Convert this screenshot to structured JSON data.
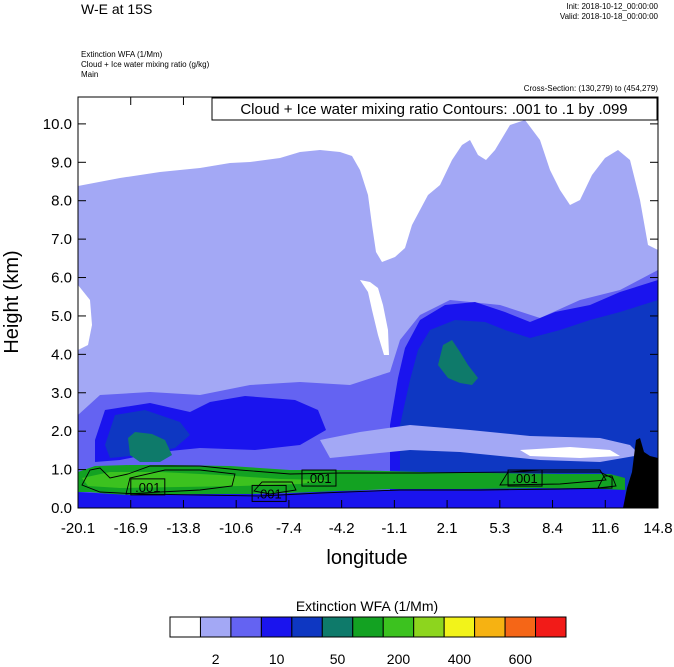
{
  "header": {
    "title": "W-E at 15S",
    "init": "Init: 2018-10-12_00:00:00",
    "valid": "Valid: 2018-10-18_00:00:00",
    "field_line1": "Extinction WFA   (1/Mm)",
    "field_line2": "Cloud + Ice water mixing ratio   (g/kg)",
    "field_line3": "Main",
    "cross_section": "Cross-Section: (130,279) to (454,279)",
    "contour_info": "Cloud + Ice water mixing ratio Contours: .001 to .1 by .099"
  },
  "chart_data": {
    "type": "heatmap",
    "xlabel": "longitude",
    "ylabel": "Height (km)",
    "xlim": [
      -20.1,
      14.8
    ],
    "ylim": [
      0.0,
      10.7
    ],
    "x_ticks": [
      "-20.1",
      "-16.9",
      "-13.8",
      "-10.6",
      "-7.4",
      "-4.2",
      "-1.1",
      "2.1",
      "5.3",
      "8.4",
      "11.6",
      "14.8"
    ],
    "y_ticks": [
      "0.0",
      "1.0",
      "2.0",
      "3.0",
      "4.0",
      "5.0",
      "6.0",
      "7.0",
      "8.0",
      "9.0",
      "10.0"
    ],
    "contour_labels": [
      {
        "text": ".001",
        "x": -15.9,
        "y": 0.55
      },
      {
        "text": ".001",
        "x": -8.6,
        "y": 0.38
      },
      {
        "text": ".001",
        "x": -5.6,
        "y": 0.78
      },
      {
        "text": ".001",
        "x": 6.8,
        "y": 0.78
      }
    ],
    "colorbar": {
      "title": "Extinction WFA  (1/Mm)",
      "colors": [
        "#ffffff",
        "#a3a8f5",
        "#6463f2",
        "#1a14ee",
        "#0e37c2",
        "#0e7a6a",
        "#13a222",
        "#3cc21f",
        "#8dd51e",
        "#f2f31a",
        "#f6b212",
        "#f56617",
        "#f21b18"
      ],
      "labels": [
        "2",
        "10",
        "50",
        "200",
        "400",
        "600"
      ]
    }
  }
}
